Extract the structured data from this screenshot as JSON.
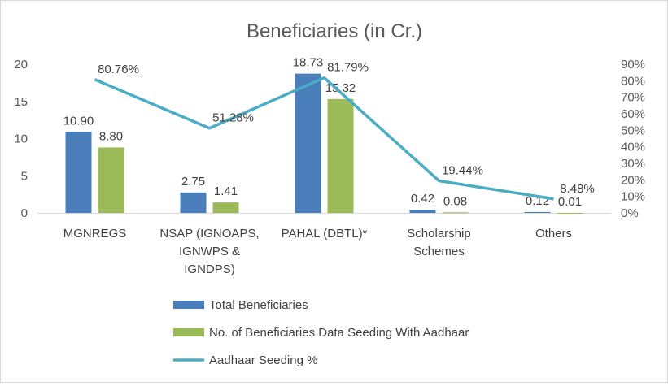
{
  "chart_data": {
    "type": "bar",
    "title": "Beneficiaries (in Cr.)",
    "categories": [
      [
        "MGNREGS"
      ],
      [
        "NSAP (IGNOAPS,",
        "IGNWPS &",
        "IGNDPS)"
      ],
      [
        "PAHAL (DBTL)*"
      ],
      [
        "Scholarship",
        "Schemes"
      ],
      [
        "Others"
      ]
    ],
    "series": [
      {
        "name": "Total Beneficiaries",
        "type": "bar",
        "axis": "left",
        "color": "#4a7ebb",
        "values": [
          10.9,
          2.75,
          18.73,
          0.42,
          0.12
        ],
        "labels": [
          "10.90",
          "2.75",
          "18.73",
          "0.42",
          "0.12"
        ]
      },
      {
        "name": "No. of Beneficiaries Data Seeding With Aadhaar",
        "type": "bar",
        "axis": "left",
        "color": "#9bbb59",
        "values": [
          8.8,
          1.41,
          15.32,
          0.08,
          0.01
        ],
        "labels": [
          "8.80",
          "1.41",
          "15.32",
          "0.08",
          "0.01"
        ]
      },
      {
        "name": "Aadhaar Seeding %",
        "type": "line",
        "axis": "right",
        "color": "#4bacc6",
        "values": [
          80.76,
          51.28,
          81.79,
          19.44,
          8.48
        ],
        "labels": [
          "80.76%",
          "51.28%",
          "81.79%",
          "19.44%",
          "8.48%"
        ]
      }
    ],
    "y_left": {
      "min": 0,
      "max": 20,
      "ticks": [
        0,
        5,
        10,
        15,
        20
      ],
      "tick_labels": [
        "0",
        "5",
        "10",
        "15",
        "20"
      ]
    },
    "y_right": {
      "min": 0,
      "max": 90,
      "ticks": [
        0,
        10,
        20,
        30,
        40,
        50,
        60,
        70,
        80,
        90
      ],
      "tick_labels": [
        "0%",
        "10%",
        "20%",
        "30%",
        "40%",
        "50%",
        "60%",
        "70%",
        "80%",
        "90%"
      ]
    },
    "grid": false,
    "legend_position": "bottom-center"
  }
}
